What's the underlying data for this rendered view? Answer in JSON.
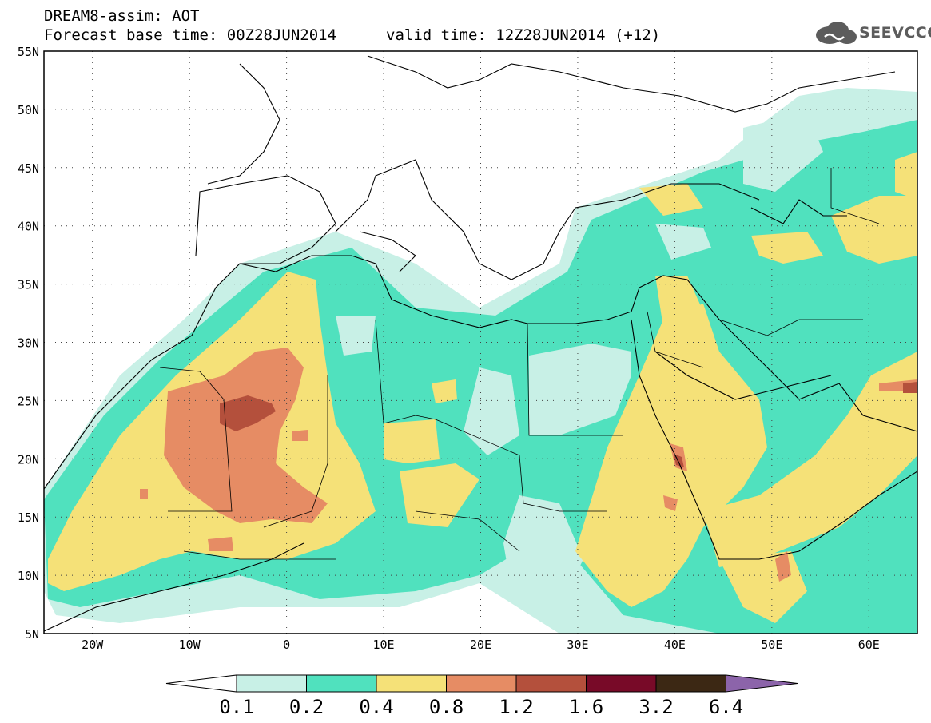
{
  "header": {
    "line1": "DREAM8-assim: AOT",
    "line2": "Forecast base time: 00Z28JUN2014",
    "valid": "valid time: 12Z28JUN2014 (+12)",
    "logo": "SEEVCCC"
  },
  "map": {
    "lon_range": [
      -25,
      65
    ],
    "lat_range": [
      5,
      55
    ],
    "lat_labels": [
      "55N",
      "50N",
      "45N",
      "40N",
      "35N",
      "30N",
      "25N",
      "20N",
      "15N",
      "10N",
      "5N"
    ],
    "lon_labels": [
      "20W",
      "10W",
      "0",
      "10E",
      "20E",
      "30E",
      "40E",
      "50E",
      "60E"
    ],
    "grid": "dotted"
  },
  "colorbar": {
    "thresholds": [
      "0.1",
      "0.2",
      "0.4",
      "0.8",
      "1.2",
      "1.6",
      "3.2",
      "6.4"
    ],
    "colors": [
      "#ffffff",
      "#c8f0e6",
      "#50e1be",
      "#f5e178",
      "#e68c64",
      "#b4503c",
      "#780a28",
      "#3c2814",
      "#8c64aa"
    ]
  }
}
